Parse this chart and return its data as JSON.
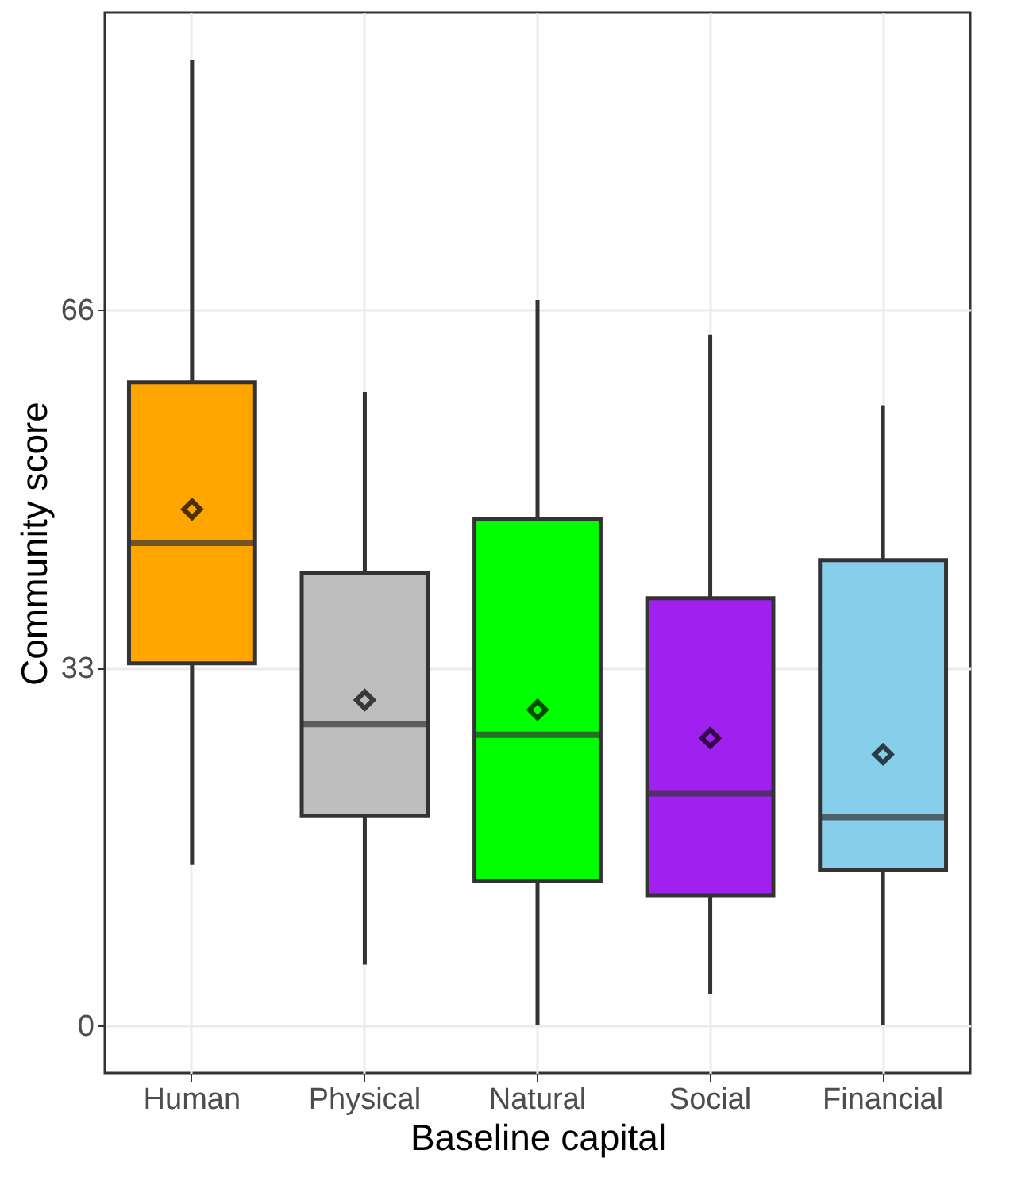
{
  "chart_data": {
    "type": "box",
    "xlabel": "Baseline capital",
    "ylabel": "Community score",
    "categories": [
      "Human",
      "Physical",
      "Natural",
      "Social",
      "Financial"
    ],
    "colors": [
      "#ffa500",
      "#bebebe",
      "#00ff00",
      "#a020f0",
      "#87ceeb"
    ],
    "boxes": [
      {
        "low": 14.8,
        "q1": 33.4,
        "median": 44.5,
        "q3": 59.3,
        "high": 89,
        "mean": 47.6
      },
      {
        "low": 5.6,
        "q1": 19.3,
        "median": 27.8,
        "q3": 41.7,
        "high": 58.4,
        "mean": 30
      },
      {
        "low": 0,
        "q1": 13.3,
        "median": 26.8,
        "q3": 46.7,
        "high": 66.9,
        "mean": 29.1
      },
      {
        "low": 2.9,
        "q1": 12,
        "median": 21.4,
        "q3": 39.4,
        "high": 63.7,
        "mean": 26.5
      },
      {
        "low": 0,
        "q1": 14.3,
        "median": 19.2,
        "q3": 42.9,
        "high": 57.2,
        "mean": 25
      }
    ],
    "ylim": [
      -4.4,
      93.4
    ],
    "yticks": [
      0,
      33,
      66
    ],
    "grid": true,
    "marker": "diamond",
    "legend": false
  }
}
